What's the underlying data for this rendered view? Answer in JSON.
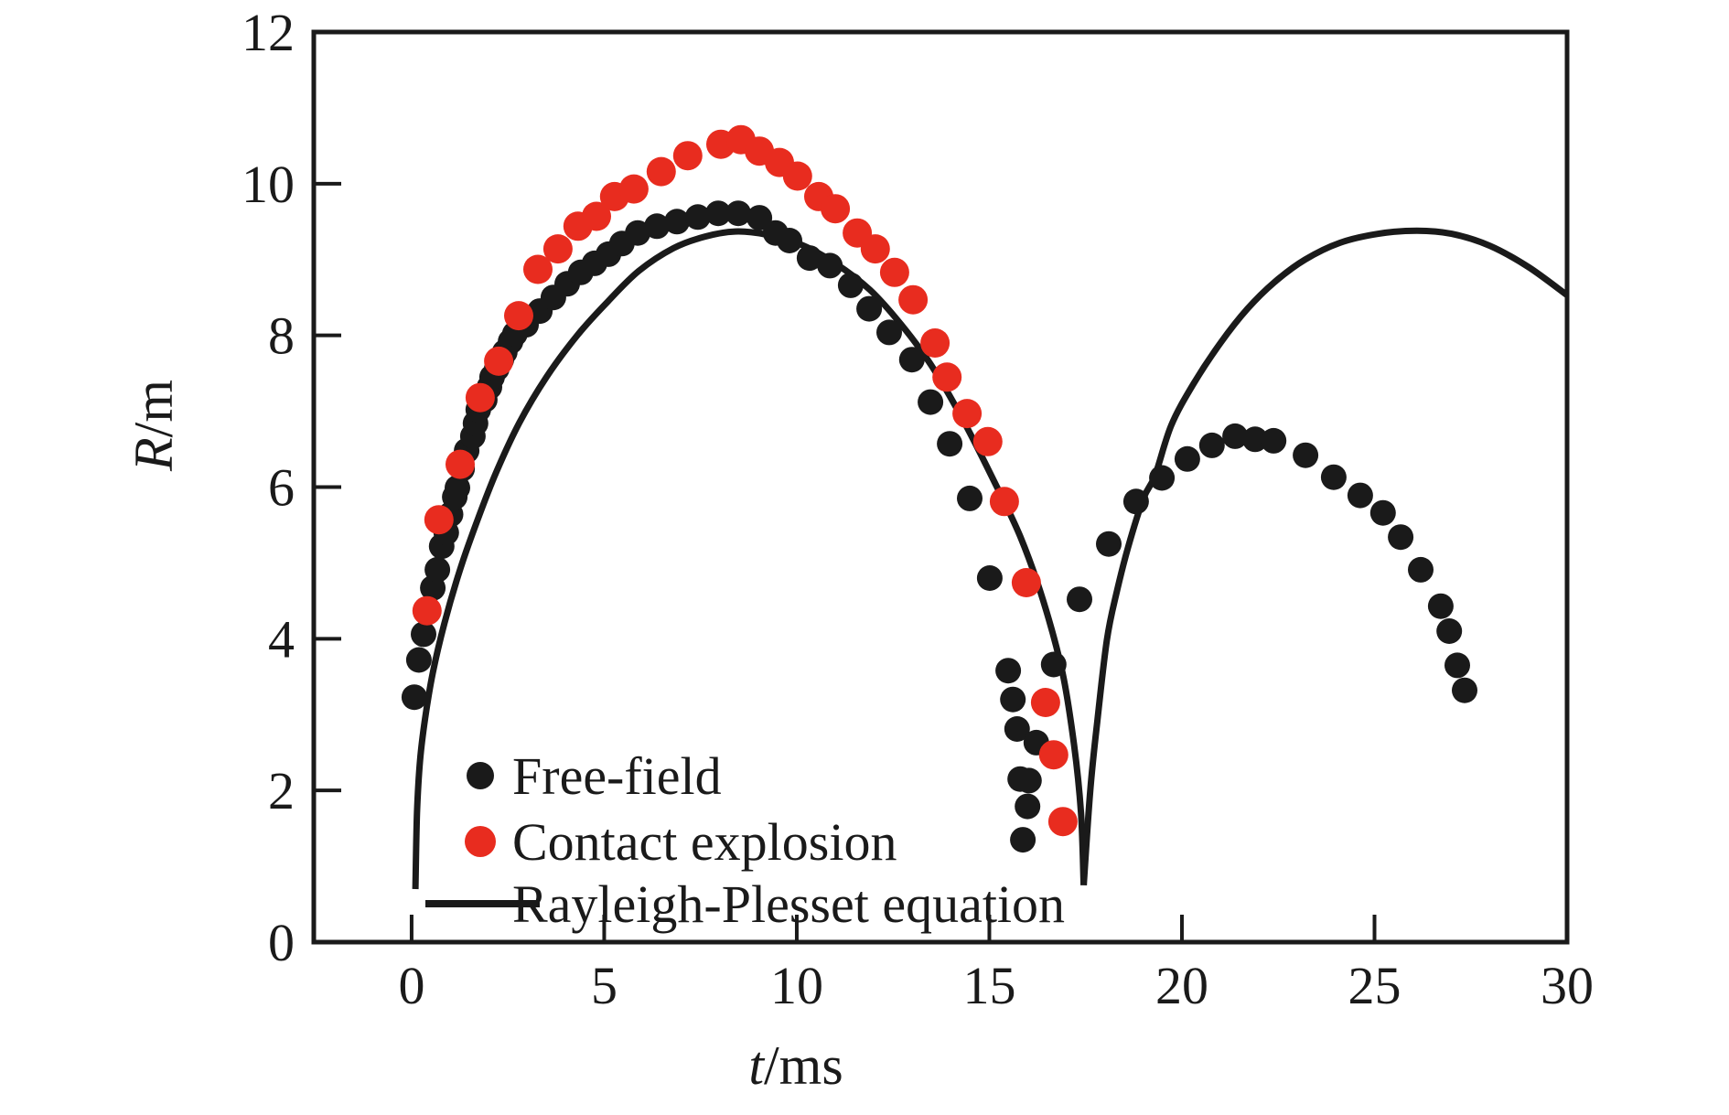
{
  "figure": {
    "background": "#ffffff",
    "frame_color": "#1a1a1a",
    "text_color": "#1a1a1a"
  },
  "axes": {
    "x": {
      "label_var": "t",
      "label_unit": "/ms",
      "range": [
        -2.54,
        30
      ],
      "ticks": [
        "0",
        "5",
        "10",
        "15",
        "20",
        "25",
        "30"
      ],
      "tick_values": [
        0,
        5,
        10,
        15,
        20,
        25,
        30
      ]
    },
    "y": {
      "label_var": "R",
      "label_unit": "/m",
      "range": [
        0,
        12
      ],
      "ticks": [
        "0",
        "2",
        "4",
        "6",
        "8",
        "10",
        "12"
      ],
      "tick_values": [
        0,
        2,
        4,
        6,
        8,
        10,
        12
      ]
    }
  },
  "legend": {
    "items": [
      {
        "label": "Free-field",
        "marker": "dot",
        "color": "#1a1a1a"
      },
      {
        "label": "Contact explosion",
        "marker": "dot",
        "color": "#e82c1f"
      },
      {
        "label": "Rayleigh-Plesset equation",
        "marker": "line",
        "color": "#1a1a1a"
      }
    ]
  },
  "chart_data": {
    "type": "scatter",
    "title": "",
    "xlabel": "t/ms",
    "ylabel": "R/m",
    "xlim": [
      -2.54,
      30
    ],
    "ylim": [
      0,
      12
    ],
    "grid": false,
    "legend_position": "lower-left",
    "series": [
      {
        "name": "Free-field",
        "type": "scatter",
        "color": "#1a1a1a",
        "marker_radius": 14,
        "points": [
          [
            0.07,
            3.23
          ],
          [
            0.19,
            3.72
          ],
          [
            0.31,
            4.06
          ],
          [
            0.43,
            4.36
          ],
          [
            0.55,
            4.67
          ],
          [
            0.67,
            4.91
          ],
          [
            0.78,
            5.22
          ],
          [
            0.9,
            5.4
          ],
          [
            1.01,
            5.64
          ],
          [
            1.12,
            5.87
          ],
          [
            1.19,
            5.99
          ],
          [
            1.31,
            6.24
          ],
          [
            1.43,
            6.48
          ],
          [
            1.59,
            6.67
          ],
          [
            1.66,
            6.84
          ],
          [
            1.73,
            7.02
          ],
          [
            1.9,
            7.15
          ],
          [
            2.02,
            7.32
          ],
          [
            2.09,
            7.45
          ],
          [
            2.21,
            7.56
          ],
          [
            2.33,
            7.68
          ],
          [
            2.42,
            7.78
          ],
          [
            2.57,
            7.92
          ],
          [
            2.68,
            8.02
          ],
          [
            2.97,
            8.14
          ],
          [
            3.33,
            8.32
          ],
          [
            3.68,
            8.5
          ],
          [
            4.04,
            8.68
          ],
          [
            4.39,
            8.83
          ],
          [
            4.75,
            8.95
          ],
          [
            5.11,
            9.07
          ],
          [
            5.46,
            9.21
          ],
          [
            5.87,
            9.35
          ],
          [
            6.37,
            9.44
          ],
          [
            6.89,
            9.5
          ],
          [
            7.43,
            9.56
          ],
          [
            7.96,
            9.61
          ],
          [
            8.48,
            9.61
          ],
          [
            9.03,
            9.55
          ],
          [
            9.45,
            9.35
          ],
          [
            9.81,
            9.25
          ],
          [
            10.33,
            9.02
          ],
          [
            10.86,
            8.92
          ],
          [
            11.4,
            8.66
          ],
          [
            11.88,
            8.35
          ],
          [
            12.4,
            8.04
          ],
          [
            12.99,
            7.68
          ],
          [
            13.47,
            7.12
          ],
          [
            13.97,
            6.57
          ],
          [
            14.49,
            5.85
          ],
          [
            15.01,
            4.8
          ],
          [
            15.49,
            3.58
          ],
          [
            15.61,
            3.2
          ],
          [
            15.72,
            2.81
          ],
          [
            15.8,
            2.15
          ],
          [
            15.87,
            1.35
          ],
          [
            15.99,
            1.79
          ],
          [
            16.03,
            2.13
          ],
          [
            16.22,
            2.63
          ],
          [
            16.67,
            3.66
          ],
          [
            17.34,
            4.52
          ],
          [
            18.1,
            5.25
          ],
          [
            18.81,
            5.81
          ],
          [
            19.48,
            6.12
          ],
          [
            20.14,
            6.37
          ],
          [
            20.78,
            6.55
          ],
          [
            21.38,
            6.67
          ],
          [
            21.9,
            6.63
          ],
          [
            22.38,
            6.61
          ],
          [
            23.21,
            6.42
          ],
          [
            23.94,
            6.13
          ],
          [
            24.63,
            5.89
          ],
          [
            25.22,
            5.66
          ],
          [
            25.68,
            5.34
          ],
          [
            26.2,
            4.91
          ],
          [
            26.72,
            4.43
          ],
          [
            26.94,
            4.1
          ],
          [
            27.15,
            3.65
          ],
          [
            27.34,
            3.32
          ]
        ]
      },
      {
        "name": "Contact explosion",
        "type": "scatter",
        "color": "#e82c1f",
        "marker_radius": 16,
        "points": [
          [
            0.4,
            4.37
          ],
          [
            0.71,
            5.57
          ],
          [
            1.26,
            6.3
          ],
          [
            1.78,
            7.18
          ],
          [
            2.26,
            7.66
          ],
          [
            2.78,
            8.26
          ],
          [
            3.28,
            8.87
          ],
          [
            3.8,
            9.14
          ],
          [
            4.32,
            9.44
          ],
          [
            4.8,
            9.57
          ],
          [
            5.27,
            9.83
          ],
          [
            5.77,
            9.93
          ],
          [
            6.48,
            10.16
          ],
          [
            7.17,
            10.37
          ],
          [
            8.03,
            10.52
          ],
          [
            8.55,
            10.58
          ],
          [
            9.03,
            10.43
          ],
          [
            9.55,
            10.28
          ],
          [
            10.02,
            10.1
          ],
          [
            10.57,
            9.83
          ],
          [
            11.0,
            9.67
          ],
          [
            11.57,
            9.35
          ],
          [
            12.04,
            9.14
          ],
          [
            12.54,
            8.83
          ],
          [
            13.02,
            8.47
          ],
          [
            13.59,
            7.9
          ],
          [
            13.9,
            7.45
          ],
          [
            14.42,
            6.97
          ],
          [
            14.96,
            6.6
          ],
          [
            15.39,
            5.81
          ],
          [
            15.96,
            4.74
          ],
          [
            16.46,
            3.16
          ],
          [
            16.67,
            2.47
          ],
          [
            16.91,
            1.59
          ]
        ]
      },
      {
        "name": "Rayleigh-Plesset equation",
        "type": "line",
        "color": "#1a1a1a",
        "line_width": 7,
        "segments": [
          [
            [
              0.1,
              0.7
            ],
            [
              0.14,
              1.7
            ],
            [
              0.22,
              2.4
            ],
            [
              0.35,
              2.95
            ],
            [
              0.55,
              3.55
            ],
            [
              0.85,
              4.2
            ],
            [
              1.25,
              4.9
            ],
            [
              1.7,
              5.55
            ],
            [
              2.2,
              6.2
            ],
            [
              2.8,
              6.85
            ],
            [
              3.5,
              7.45
            ],
            [
              4.3,
              8.0
            ],
            [
              5.1,
              8.45
            ],
            [
              5.9,
              8.85
            ],
            [
              6.8,
              9.15
            ],
            [
              7.6,
              9.3
            ],
            [
              8.4,
              9.37
            ],
            [
              9.2,
              9.33
            ],
            [
              10.1,
              9.2
            ],
            [
              11.0,
              8.95
            ],
            [
              11.9,
              8.6
            ],
            [
              12.7,
              8.15
            ],
            [
              13.5,
              7.6
            ],
            [
              14.3,
              6.9
            ],
            [
              15.1,
              6.1
            ],
            [
              15.8,
              5.35
            ],
            [
              16.4,
              4.5
            ],
            [
              16.9,
              3.55
            ],
            [
              17.2,
              2.6
            ],
            [
              17.38,
              1.7
            ],
            [
              17.45,
              0.75
            ]
          ],
          [
            [
              17.45,
              0.75
            ],
            [
              17.62,
              2.0
            ],
            [
              17.8,
              2.9
            ],
            [
              18.05,
              3.98
            ],
            [
              18.3,
              4.6
            ],
            [
              18.6,
              5.2
            ],
            [
              19.0,
              5.85
            ],
            [
              19.3,
              6.15
            ],
            [
              19.72,
              6.81
            ],
            [
              20.3,
              7.36
            ],
            [
              21.0,
              7.9
            ],
            [
              21.7,
              8.35
            ],
            [
              22.4,
              8.7
            ],
            [
              23.2,
              9.0
            ],
            [
              24.1,
              9.22
            ],
            [
              25.1,
              9.34
            ],
            [
              26.1,
              9.38
            ],
            [
              27.0,
              9.34
            ],
            [
              28.0,
              9.18
            ],
            [
              29.0,
              8.9
            ],
            [
              30.0,
              8.53
            ]
          ]
        ]
      }
    ]
  }
}
